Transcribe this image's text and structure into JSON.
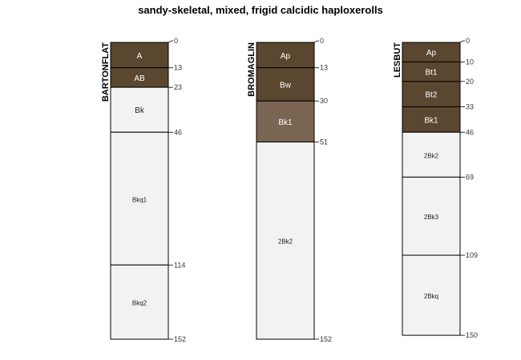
{
  "chart_data": {
    "type": "soil-profile",
    "title": "sandy-skeletal, mixed, frigid calcidic haploxerolls",
    "depth_units": "cm",
    "profiles": [
      {
        "name": "BARTONFLAT",
        "horizons": [
          {
            "name": "A",
            "top": 0,
            "bottom": 13,
            "color": "#5b4630"
          },
          {
            "name": "AB",
            "top": 13,
            "bottom": 23,
            "color": "#5b4630"
          },
          {
            "name": "Bk",
            "top": 23,
            "bottom": 46,
            "color": "#f2f2f2"
          },
          {
            "name": "Bkq1",
            "top": 46,
            "bottom": 114,
            "color": "#f2f2f2"
          },
          {
            "name": "Bkq2",
            "top": 114,
            "bottom": 152,
            "color": "#f2f2f2"
          }
        ]
      },
      {
        "name": "BROMAGLIN",
        "horizons": [
          {
            "name": "Ap",
            "top": 0,
            "bottom": 13,
            "color": "#5b4630"
          },
          {
            "name": "Bw",
            "top": 13,
            "bottom": 30,
            "color": "#5b4630"
          },
          {
            "name": "Bk1",
            "top": 30,
            "bottom": 51,
            "color": "#7a6552"
          },
          {
            "name": "2Bk2",
            "top": 51,
            "bottom": 152,
            "color": "#f2f2f2"
          }
        ]
      },
      {
        "name": "LESBUT",
        "horizons": [
          {
            "name": "Ap",
            "top": 0,
            "bottom": 10,
            "color": "#5b4630"
          },
          {
            "name": "Bt1",
            "top": 10,
            "bottom": 20,
            "color": "#5b4630"
          },
          {
            "name": "Bt2",
            "top": 20,
            "bottom": 33,
            "color": "#5b4630"
          },
          {
            "name": "Bk1",
            "top": 33,
            "bottom": 46,
            "color": "#5b4630"
          },
          {
            "name": "2Bk2",
            "top": 46,
            "bottom": 69,
            "color": "#f2f2f2"
          },
          {
            "name": "2Bk3",
            "top": 69,
            "bottom": 109,
            "color": "#f2f2f2"
          },
          {
            "name": "2Bkq",
            "top": 109,
            "bottom": 150,
            "color": "#f2f2f2"
          }
        ]
      }
    ]
  }
}
